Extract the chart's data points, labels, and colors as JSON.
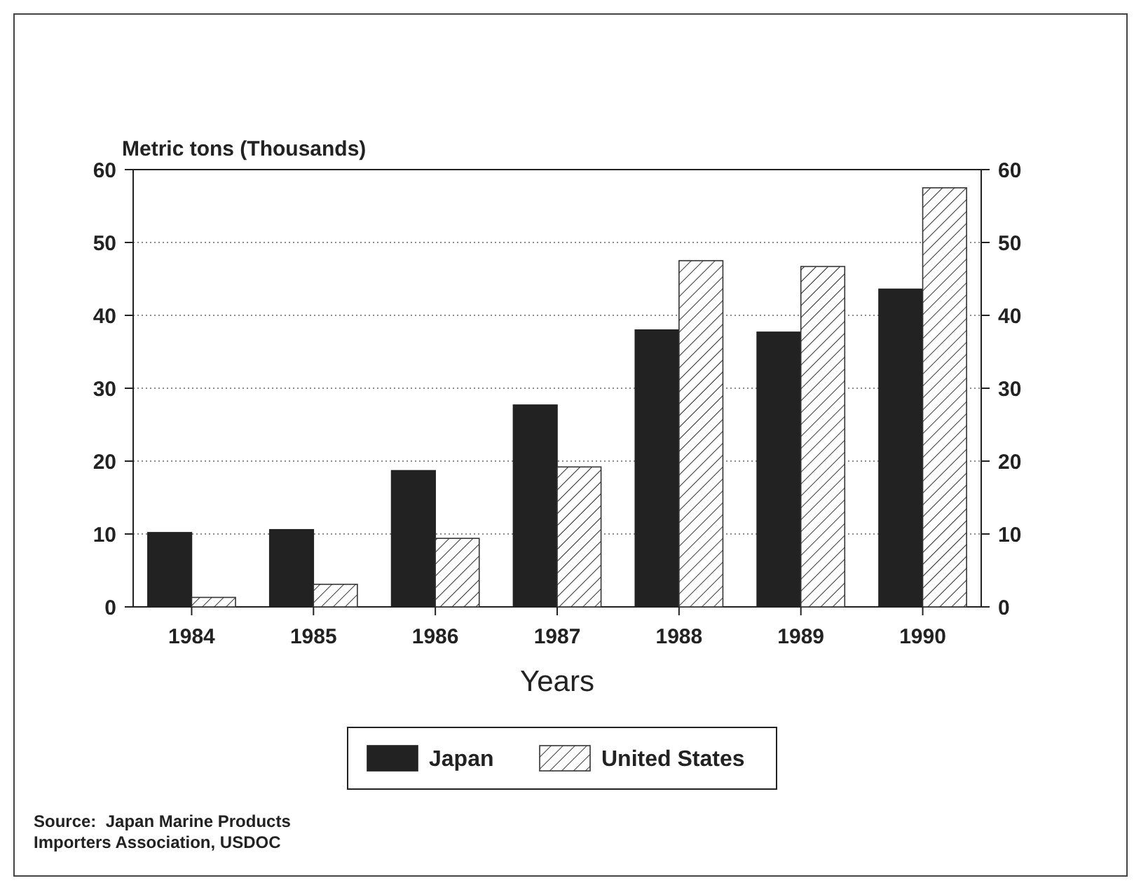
{
  "chart_data": {
    "type": "bar",
    "ylabel": "Metric tons (Thousands)",
    "xlabel": "Years",
    "categories": [
      "1984",
      "1985",
      "1986",
      "1987",
      "1988",
      "1989",
      "1990"
    ],
    "series": [
      {
        "name": "Japan",
        "color": "#222222",
        "values": [
          10.2,
          10.6,
          18.7,
          27.7,
          38,
          37.7,
          43.6
        ]
      },
      {
        "name": "United States",
        "color": "#333333",
        "values": [
          1.3,
          3.1,
          9.4,
          19.2,
          47.5,
          46.7,
          57.5
        ]
      }
    ],
    "ylim": [
      0,
      60
    ],
    "yticks": [
      0,
      10,
      20,
      30,
      40,
      50,
      60
    ],
    "y2lim": [
      0,
      60
    ],
    "y2ticks": [
      0,
      10,
      20,
      30,
      40,
      50,
      60
    ],
    "grid": "y",
    "legend": "bottom",
    "annotations": [
      "Source:  Japan Marine Products Importers Association, USDOC"
    ]
  }
}
